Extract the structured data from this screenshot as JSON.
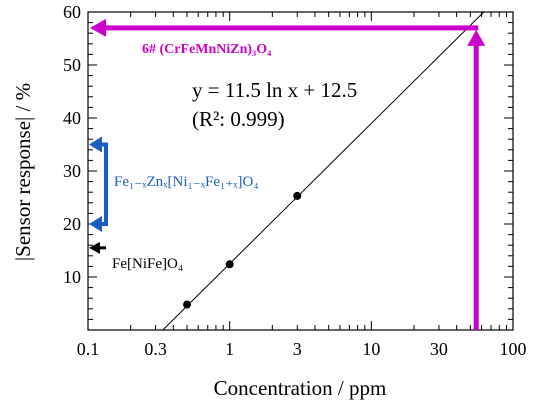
{
  "chart_data": {
    "type": "scatter",
    "x_scale": "log",
    "xlabel": "Concentration / ppm",
    "ylabel": "|Sensor response|  / %",
    "xlim": [
      0.1,
      100
    ],
    "ylim": [
      0,
      60
    ],
    "x_ticks": [
      0.1,
      0.3,
      1,
      3,
      10,
      30,
      100
    ],
    "x_tick_labels": [
      "0.1",
      "0.3",
      "1",
      "3",
      "10",
      "30",
      "100"
    ],
    "y_ticks": [
      10,
      20,
      30,
      40,
      50,
      60
    ],
    "y_tick_labels": [
      "10",
      "20",
      "30",
      "40",
      "50",
      "60"
    ],
    "points": [
      {
        "x": 0.5,
        "y": 4.8
      },
      {
        "x": 1,
        "y": 12.4
      },
      {
        "x": 3,
        "y": 25.3
      }
    ],
    "fit": {
      "slope": 11.5,
      "intercept": 12.5,
      "equation": "y = 11.5 ln x + 12.5",
      "r2": "(R²: 0.999)"
    },
    "annotations": {
      "magenta": {
        "label": "6# (CrFeMnNiZn)₃O₄",
        "color": "#cc00cc",
        "x": 55,
        "y": 57
      },
      "blue": {
        "label": "Fe₁₋ₓZnₓ[Ni₁₋ₓFe₁₊ₓ]O₄",
        "color": "#1a5fbf",
        "y_top": 35,
        "y_bottom": 20
      },
      "black": {
        "label": "Fe[NiFe]O₄",
        "color": "#000000",
        "y": 15.5
      }
    },
    "grid": false
  }
}
